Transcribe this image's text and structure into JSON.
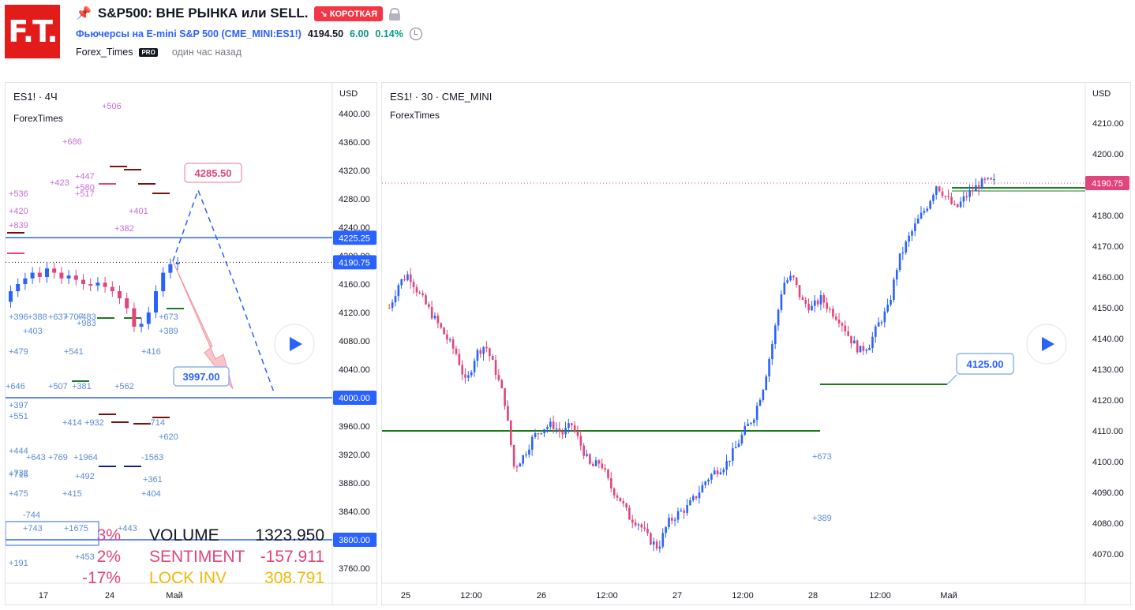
{
  "header": {
    "logo_text": "F.T.",
    "title": "S&P500: ВНЕ РЫНКА или SELL.",
    "direction_badge": "↘ КОРОТКАЯ",
    "symbol_name": "Фьючерсы на E-mini S&P 500",
    "symbol_code": "(CME_MINI:ES1!)",
    "price": "4194.50",
    "change": "6.00",
    "change_pct": "0.14%",
    "author": "Forex_Times",
    "pro_badge": "PRO",
    "published": "один час назад",
    "accent_color": "#2962ff",
    "badge_color": "#f23645"
  },
  "left_chart": {
    "legend_title": "ES1! · 4Ч",
    "legend_sub": "ForexTimes",
    "currency": "USD",
    "y_ticks": [
      "4400.00",
      "4360.00",
      "4320.00",
      "4280.00",
      "4240.00",
      "4200.00",
      "4160.00",
      "4120.00",
      "4080.00",
      "4040.00",
      "4000.00",
      "3960.00",
      "3920.00",
      "3880.00",
      "3840.00",
      "3800.00",
      "3760.00"
    ],
    "x_ticks": [
      "17",
      "24",
      "Май"
    ],
    "price_badges": [
      {
        "label": "4225.25",
        "color": "#2962ff"
      },
      {
        "label": "4190.75",
        "color": "#2962ff"
      },
      {
        "label": "4000.00",
        "color": "#2962ff"
      },
      {
        "label": "3800.00",
        "color": "#2962ff"
      }
    ],
    "callout_upper": "4285.50",
    "callout_lower": "3997.00",
    "footprint_labels": [
      "+506",
      "+686",
      "+447",
      "+423",
      "+580",
      "+517",
      "+536",
      "+420",
      "+839",
      "+401",
      "+382",
      "+396",
      "+388",
      "+637",
      "+707",
      "+483",
      "+983",
      "+403",
      "+673",
      "+389",
      "+479",
      "+541",
      "+416",
      "+646",
      "+507",
      "+381",
      "+562",
      "+397",
      "+551",
      "+414",
      "+932",
      "-714",
      "+620",
      "+444",
      "+643",
      "+769",
      "+1964",
      "-1563",
      "+732",
      "+492",
      "+361",
      "+715",
      "+475",
      "+415",
      "+404",
      "-744",
      "+743",
      "+1675",
      "+443",
      "+453",
      "+191"
    ],
    "volume_stats": [
      {
        "pct": "3%",
        "label": "VOLUME",
        "value": "1323.950",
        "color": "#131722"
      },
      {
        "pct": "2%",
        "label": "SENTIMENT",
        "value": "-157.911",
        "color": "#e0457b"
      },
      {
        "pct": "-17%",
        "label": "LOCK INV",
        "value": "308.791",
        "color": "#f0b90b"
      }
    ]
  },
  "right_chart": {
    "legend_title": "ES1! · 30 · CME_MINI",
    "legend_sub": "ForexTimes",
    "currency": "USD",
    "y_ticks": [
      "4210.00",
      "4200.00",
      "4190.00",
      "4180.00",
      "4170.00",
      "4160.00",
      "4150.00",
      "4140.00",
      "4130.00",
      "4120.00",
      "4110.00",
      "4100.00",
      "4090.00",
      "4080.00",
      "4070.00"
    ],
    "x_ticks": [
      "25",
      "12:00",
      "26",
      "12:00",
      "27",
      "12:00",
      "28",
      "12:00",
      "Май"
    ],
    "price_badge": {
      "label": "4190.75",
      "color": "#e0457b"
    },
    "callout": "4125.00",
    "labels": [
      "+673",
      "+389"
    ]
  },
  "chart_data": {
    "type": "candlestick",
    "series": [
      {
        "name": "ES1! 30m",
        "close_path": [
          4150,
          4158,
          4161,
          4155,
          4150,
          4145,
          4140,
          4135,
          4125,
          4135,
          4138,
          4130,
          4120,
          4098,
          4102,
          4108,
          4111,
          4112,
          4109,
          4112,
          4105,
          4098,
          4100,
          4092,
          4088,
          4082,
          4080,
          4075,
          4072,
          4080,
          4083,
          4085,
          4089,
          4094,
          4097,
          4099,
          4104,
          4110,
          4115,
          4125,
          4140,
          4158,
          4160,
          4152,
          4150,
          4153,
          4149,
          4146,
          4140,
          4136,
          4138,
          4145,
          4150,
          4165,
          4172,
          4178,
          4183,
          4190,
          4186,
          4182,
          4186,
          4189,
          4191,
          4190.75
        ]
      }
    ]
  }
}
